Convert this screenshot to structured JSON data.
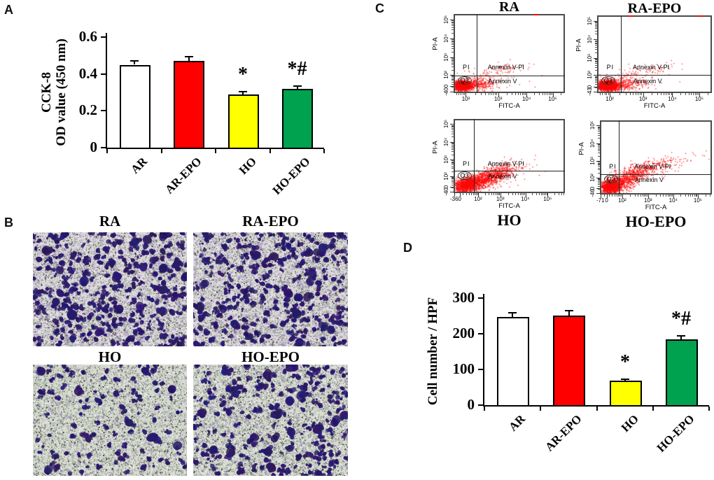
{
  "panels": {
    "A": {
      "label": "A"
    },
    "B": {
      "label": "B",
      "images": [
        {
          "title": "RA",
          "cell_density": "high",
          "seed": 11,
          "blobs": 340,
          "base": "#ddd6de"
        },
        {
          "title": "RA-EPO",
          "cell_density": "high",
          "seed": 22,
          "blobs": 315,
          "base": "#dcd6dd"
        },
        {
          "title": "HO",
          "cell_density": "low",
          "seed": 33,
          "blobs": 115,
          "base": "#d5dacf"
        },
        {
          "title": "HO-EPO",
          "cell_density": "medium",
          "seed": 44,
          "blobs": 245,
          "base": "#d7dcd2"
        }
      ]
    },
    "C": {
      "label": "C"
    },
    "D": {
      "label": "D"
    }
  },
  "chart_data": [
    {
      "id": "A",
      "type": "bar",
      "title": "",
      "ylabel_lines": [
        "CCK-8",
        "OD value (450 nm)"
      ],
      "categories": [
        "AR",
        "AR-EPO",
        "HO",
        "HO-EPO"
      ],
      "values": [
        0.45,
        0.47,
        0.29,
        0.32
      ],
      "errors": [
        0.02,
        0.025,
        0.012,
        0.015
      ],
      "bar_colors": [
        "#FFFFFF",
        "#FE0000",
        "#FFFF00",
        "#00A14F"
      ],
      "ytick_labels": [
        "0",
        "0.2",
        "0.4",
        "0.6"
      ],
      "ytick_values": [
        0,
        0.2,
        0.4,
        0.6
      ],
      "ylim": [
        0,
        0.6
      ],
      "grid": false,
      "annotations": [
        {
          "index": 2,
          "text": "*"
        },
        {
          "index": 3,
          "text": "*#"
        }
      ]
    },
    {
      "id": "D",
      "type": "bar",
      "title": "",
      "ylabel_lines": [
        "Cell number / HPF"
      ],
      "categories": [
        "AR",
        "AR-EPO",
        "HO",
        "HO-EPO"
      ],
      "values": [
        247,
        251,
        68,
        184
      ],
      "errors": [
        12,
        13,
        4,
        10
      ],
      "bar_colors": [
        "#FFFFFF",
        "#FE0000",
        "#FFFF00",
        "#00A14F"
      ],
      "ytick_labels": [
        "0",
        "100",
        "200",
        "300"
      ],
      "ytick_values": [
        0,
        100,
        200,
        300
      ],
      "ylim": [
        0,
        300
      ],
      "grid": false,
      "annotations": [
        {
          "index": 2,
          "text": "*"
        },
        {
          "index": 3,
          "text": "*#"
        }
      ]
    },
    {
      "id": "C",
      "type": "scatter",
      "subtype": "flow-cytometry",
      "plots": [
        {
          "title": "RA",
          "title_position": "top",
          "xlabel": "FITC-A",
          "ylabel": "PI-A",
          "xticks": [
            {
              "label": "10²",
              "f": 0.11
            },
            {
              "label": "10³",
              "f": 0.4
            },
            {
              "label": "10⁴",
              "f": 0.655
            },
            {
              "label": "10⁵",
              "f": 0.89
            }
          ],
          "yticks": [
            {
              "label": "-40",
              "f": 0.02
            },
            {
              "label": "0",
              "f": 0.085
            },
            {
              "label": "10²",
              "f": 0.23
            },
            {
              "label": "10³",
              "f": 0.45
            },
            {
              "label": "10⁴",
              "f": 0.69
            },
            {
              "label": "10⁵",
              "f": 0.93
            }
          ],
          "vline": 0.21,
          "hline": 0.225,
          "quadrants": {
            "upper_left": "PI",
            "upper_right": "Annexin V-PI",
            "lower_left": "Q3",
            "lower_right": "Annexin V"
          },
          "clusters": [
            {
              "cx": 0.065,
              "cy": 0.085,
              "sx": 0.045,
              "sy": 0.032,
              "n": 1500,
              "slope": 0
            },
            {
              "cx": 0.2,
              "cy": 0.1,
              "sx": 0.09,
              "sy": 0.045,
              "n": 300,
              "slope": 0.1
            },
            {
              "cx": 0.42,
              "cy": 0.29,
              "sx": 0.13,
              "sy": 0.045,
              "n": 85,
              "slope": 0.25
            },
            {
              "cx": 0.3,
              "cy": 0.14,
              "sx": 0.2,
              "sy": 0.09,
              "n": 60,
              "slope": 0
            }
          ],
          "edge_marks": [
            0.72
          ]
        },
        {
          "title": "RA-EPO",
          "title_position": "top",
          "xlabel": "FITC-A",
          "ylabel": "PI-A",
          "xticks": [
            {
              "label": "10²",
              "f": 0.11
            },
            {
              "label": "10³",
              "f": 0.4
            },
            {
              "label": "10⁴",
              "f": 0.655
            },
            {
              "label": "10⁵",
              "f": 0.89
            }
          ],
          "yticks": [
            {
              "label": "-43",
              "f": 0.02
            },
            {
              "label": "0",
              "f": 0.085
            },
            {
              "label": "10²",
              "f": 0.23
            },
            {
              "label": "10³",
              "f": 0.45
            },
            {
              "label": "10⁴",
              "f": 0.69
            },
            {
              "label": "10⁵",
              "f": 0.93
            }
          ],
          "vline": 0.21,
          "hline": 0.23,
          "quadrants": {
            "upper_left": "PI",
            "upper_right": "Annexin V-PI",
            "lower_left": "Q3",
            "lower_right": "Annexin V"
          },
          "clusters": [
            {
              "cx": 0.07,
              "cy": 0.085,
              "sx": 0.05,
              "sy": 0.035,
              "n": 1600,
              "slope": 0
            },
            {
              "cx": 0.22,
              "cy": 0.1,
              "sx": 0.1,
              "sy": 0.05,
              "n": 350,
              "slope": 0.15
            },
            {
              "cx": 0.42,
              "cy": 0.28,
              "sx": 0.14,
              "sy": 0.05,
              "n": 80,
              "slope": 0.25
            },
            {
              "cx": 0.3,
              "cy": 0.15,
              "sx": 0.2,
              "sy": 0.09,
              "n": 50,
              "slope": 0
            }
          ],
          "edge_marks": [
            0.27,
            0.88
          ]
        },
        {
          "title": "HO",
          "title_position": "bottom",
          "xlabel": "FITC-A",
          "ylabel": "PI-A",
          "xticks": [
            {
              "label": "-36",
              "f": 0.005
            },
            {
              "label": "0",
              "f": 0.055
            },
            {
              "label": "10²",
              "f": 0.22
            },
            {
              "label": "10³",
              "f": 0.42
            },
            {
              "label": "10⁴",
              "f": 0.645
            },
            {
              "label": "10⁵",
              "f": 0.845
            }
          ],
          "yticks": [
            {
              "label": "-40",
              "f": 0.02
            },
            {
              "label": "0",
              "f": 0.085
            },
            {
              "label": "10²",
              "f": 0.23
            },
            {
              "label": "10³",
              "f": 0.45
            },
            {
              "label": "10⁴",
              "f": 0.69
            },
            {
              "label": "10⁵",
              "f": 0.93
            }
          ],
          "vline": 0.18,
          "hline": 0.3,
          "quadrants": {
            "upper_left": "PI",
            "upper_right": "Annexin V-PI",
            "lower_left": "Q3",
            "lower_right": "Annexin V"
          },
          "clusters": [
            {
              "cx": 0.1,
              "cy": 0.1,
              "sx": 0.06,
              "sy": 0.05,
              "n": 1100,
              "slope": 0.3
            },
            {
              "cx": 0.27,
              "cy": 0.18,
              "sx": 0.11,
              "sy": 0.06,
              "n": 1000,
              "slope": 0.5
            },
            {
              "cx": 0.45,
              "cy": 0.32,
              "sx": 0.1,
              "sy": 0.05,
              "n": 160,
              "slope": 0.3
            },
            {
              "cx": 0.25,
              "cy": 0.15,
              "sx": 0.22,
              "sy": 0.1,
              "n": 120,
              "slope": 0.3
            }
          ],
          "edge_marks": []
        },
        {
          "title": "HO-EPO",
          "title_position": "bottom",
          "xlabel": "FITC-A",
          "ylabel": "PI-A",
          "xticks": [
            {
              "label": "-71",
              "f": 0.005
            },
            {
              "label": "0",
              "f": 0.06
            },
            {
              "label": "10²",
              "f": 0.2
            },
            {
              "label": "10³",
              "f": 0.43
            },
            {
              "label": "10⁴",
              "f": 0.655
            },
            {
              "label": "10⁵",
              "f": 0.875
            }
          ],
          "yticks": [
            {
              "label": "-46",
              "f": 0.02
            },
            {
              "label": "0",
              "f": 0.085
            },
            {
              "label": "10²",
              "f": 0.23
            },
            {
              "label": "10³",
              "f": 0.45
            },
            {
              "label": "10⁴",
              "f": 0.69
            },
            {
              "label": "10⁵",
              "f": 0.93
            }
          ],
          "vline": 0.17,
          "hline": 0.275,
          "quadrants": {
            "upper_left": "PI",
            "upper_right": "Annexin V-PI",
            "lower_left": "Q3",
            "lower_right": "Annexin V"
          },
          "clusters": [
            {
              "cx": 0.08,
              "cy": 0.09,
              "sx": 0.05,
              "sy": 0.05,
              "n": 1100,
              "slope": 0.2
            },
            {
              "cx": 0.22,
              "cy": 0.19,
              "sx": 0.09,
              "sy": 0.07,
              "n": 700,
              "slope": 0.6
            },
            {
              "cx": 0.38,
              "cy": 0.33,
              "sx": 0.13,
              "sy": 0.06,
              "n": 300,
              "slope": 0.35
            },
            {
              "cx": 0.6,
              "cy": 0.42,
              "sx": 0.16,
              "sy": 0.07,
              "n": 70,
              "slope": 0.3
            }
          ],
          "edge_marks": []
        }
      ]
    }
  ]
}
